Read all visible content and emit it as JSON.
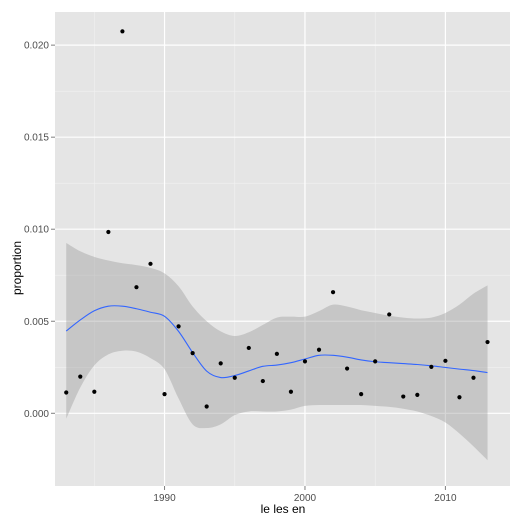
{
  "chart_data": {
    "type": "scatter",
    "title": "",
    "xlabel": "le les en",
    "ylabel": "proportion",
    "xlim": [
      1982.2,
      2014.6
    ],
    "ylim": [
      -0.00395,
      0.0218
    ],
    "x_ticks": [
      1990,
      2000,
      2010
    ],
    "x_minor_ticks": [
      1985,
      1995,
      2005
    ],
    "y_ticks": [
      0.0,
      0.005,
      0.01,
      0.015,
      0.02
    ],
    "y_tick_labels": [
      "0.000",
      "0.005",
      "0.010",
      "0.015",
      "0.020"
    ],
    "y_minor_ticks": [
      0.0025,
      0.0075,
      0.0125,
      0.0175
    ],
    "grid": true,
    "points": [
      {
        "x": 1983,
        "y": 0.00113
      },
      {
        "x": 1984,
        "y": 0.00199
      },
      {
        "x": 1985,
        "y": 0.00117
      },
      {
        "x": 1986,
        "y": 0.00985
      },
      {
        "x": 1987,
        "y": 0.02075
      },
      {
        "x": 1988,
        "y": 0.00685
      },
      {
        "x": 1989,
        "y": 0.00812
      },
      {
        "x": 1990,
        "y": 0.00104
      },
      {
        "x": 1991,
        "y": 0.00472
      },
      {
        "x": 1992,
        "y": 0.00327
      },
      {
        "x": 1993,
        "y": 0.00037
      },
      {
        "x": 1994,
        "y": 0.00271
      },
      {
        "x": 1995,
        "y": 0.00193
      },
      {
        "x": 1996,
        "y": 0.00355
      },
      {
        "x": 1997,
        "y": 0.00175
      },
      {
        "x": 1998,
        "y": 0.00323
      },
      {
        "x": 1999,
        "y": 0.00117
      },
      {
        "x": 2000,
        "y": 0.00282
      },
      {
        "x": 2001,
        "y": 0.00345
      },
      {
        "x": 2002,
        "y": 0.00658
      },
      {
        "x": 2003,
        "y": 0.00243
      },
      {
        "x": 2004,
        "y": 0.00104
      },
      {
        "x": 2005,
        "y": 0.00282
      },
      {
        "x": 2006,
        "y": 0.00537
      },
      {
        "x": 2007,
        "y": 0.00091
      },
      {
        "x": 2008,
        "y": 0.001
      },
      {
        "x": 2009,
        "y": 0.00252
      },
      {
        "x": 2010,
        "y": 0.00285
      },
      {
        "x": 2011,
        "y": 0.00087
      },
      {
        "x": 2012,
        "y": 0.00193
      },
      {
        "x": 2013,
        "y": 0.00387
      }
    ],
    "smooth": {
      "x": [
        1983,
        1984,
        1985,
        1986,
        1987,
        1988,
        1989,
        1990,
        1991,
        1992,
        1993,
        1994,
        1995,
        1996,
        1997,
        1998,
        1999,
        2000,
        2001,
        2002,
        2003,
        2004,
        2005,
        2006,
        2007,
        2008,
        2009,
        2010,
        2011,
        2012,
        2013
      ],
      "y": [
        0.00447,
        0.00507,
        0.00557,
        0.00582,
        0.00582,
        0.00568,
        0.00549,
        0.00527,
        0.00445,
        0.0033,
        0.00229,
        0.00194,
        0.00205,
        0.0023,
        0.00255,
        0.00262,
        0.00275,
        0.00295,
        0.00315,
        0.00315,
        0.00305,
        0.0029,
        0.0028,
        0.00275,
        0.0027,
        0.00265,
        0.00258,
        0.00249,
        0.0024,
        0.00232,
        0.00221
      ],
      "lower": [
        -0.0003,
        0.0014,
        0.0026,
        0.0032,
        0.0034,
        0.00335,
        0.003,
        0.0024,
        0.0008,
        -0.0006,
        -0.0008,
        -0.0006,
        -0.0001,
        0.0001,
        0.0001,
        0.0001,
        0.0002,
        0.0004,
        0.00045,
        0.00045,
        0.00045,
        0.00045,
        0.0004,
        0.00035,
        0.00025,
        0.0001,
        -0.00015,
        -0.0005,
        -0.0011,
        -0.0018,
        -0.00255
      ],
      "upper": [
        0.00925,
        0.0088,
        0.0085,
        0.0083,
        0.00815,
        0.00805,
        0.0079,
        0.0076,
        0.0069,
        0.0058,
        0.005,
        0.00445,
        0.0042,
        0.0044,
        0.0048,
        0.0052,
        0.00525,
        0.00525,
        0.00555,
        0.0059,
        0.0058,
        0.0056,
        0.00545,
        0.0053,
        0.0052,
        0.00515,
        0.0052,
        0.00545,
        0.0059,
        0.0065,
        0.00695
      ]
    },
    "colors": {
      "panel": "#e5e5e5",
      "grid_major": "#ffffff",
      "grid_minor": "#f2f2f2",
      "points": "#000000",
      "line": "#3366ff",
      "ribbon": "#999999"
    }
  }
}
